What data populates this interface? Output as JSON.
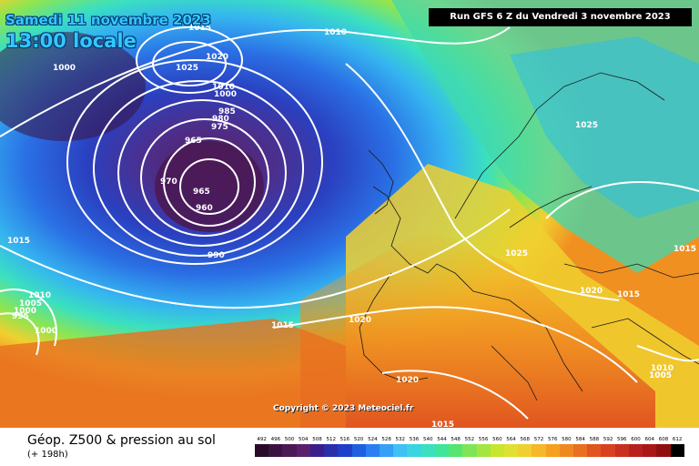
{
  "header": {
    "date_text": "Samedi 11 novembre 2023",
    "time_text": "13:00 locale",
    "run_text": "Run GFS 6 Z du Vendredi 3 novembre 2023"
  },
  "map": {
    "copyright": "Copyright © 2023 Meteociel.fr",
    "isobar_labels": [
      "1015",
      "1010",
      "1020",
      "1025",
      "1000",
      "1010",
      "1000",
      "985",
      "980",
      "975",
      "965",
      "970",
      "965",
      "960",
      "990",
      "1015",
      "1010",
      "1005",
      "1000",
      "995",
      "1000",
      "1015",
      "1020",
      "1025",
      "1025",
      "1020",
      "1015",
      "1015",
      "1020",
      "1015",
      "1010",
      "1005"
    ]
  },
  "footer": {
    "title": "Géop. Z500 & pression au sol",
    "subtitle": "(+ 198h)"
  },
  "legend": {
    "values": [
      "492",
      "496",
      "500",
      "504",
      "508",
      "512",
      "516",
      "520",
      "524",
      "528",
      "532",
      "536",
      "540",
      "544",
      "548",
      "552",
      "556",
      "560",
      "564",
      "568",
      "572",
      "576",
      "580",
      "584",
      "588",
      "592",
      "596",
      "600",
      "604",
      "608",
      "612"
    ],
    "colors": [
      "#2a0a2a",
      "#3a1240",
      "#4a1a55",
      "#5a1f6a",
      "#3a1f8a",
      "#2a2faa",
      "#1f3fc8",
      "#1f5fe0",
      "#2a80f0",
      "#35a0f5",
      "#40c0f5",
      "#3ad5e0",
      "#3ae0c0",
      "#40e59a",
      "#55e570",
      "#80e555",
      "#a5e540",
      "#c8e530",
      "#e0e030",
      "#f0d030",
      "#f5b828",
      "#f5a020",
      "#f08820",
      "#e87020",
      "#e05520",
      "#d84020",
      "#c83020",
      "#b82020",
      "#a81818",
      "#901010",
      "#000000"
    ]
  }
}
